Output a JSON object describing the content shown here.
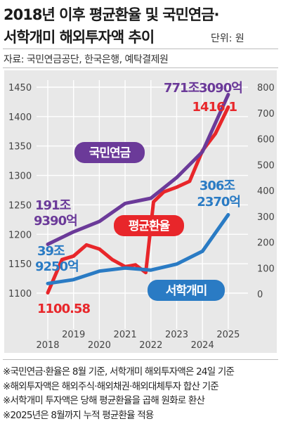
{
  "title_line1": "2018년 이후 평균환율 및 국민연금·",
  "title_line2": "서학개미 해외투자액 추이",
  "unit": "단위: 원",
  "source": "자료: 국민연금공단, 한국은행, 예탁결제원",
  "notes": [
    "※국민연금·환율은 8월 기준, 서학개미 해외투자액은 24일 기준",
    "※해외투자액은 해외주식·해외채권·해외대체투자 합산 기준",
    "※서학개미 투자액은 당해 평균환율을 곱해 원화로 환산",
    "※2025년은 8월까지 누적 평균환율 적용"
  ],
  "colors": {
    "exchange": "#e8262a",
    "pension": "#6b3a99",
    "retail": "#2a7bc4",
    "plot_bg": "#e8e8e8",
    "grid": "#ffffff"
  },
  "chart_data": {
    "type": "line",
    "x": [
      "2018",
      "2019",
      "2020",
      "2021",
      "2022",
      "2023",
      "2024",
      "2025"
    ],
    "y_left": {
      "ticks": [
        "1450",
        "1400",
        "1350",
        "1300",
        "1250",
        "1200",
        "1150",
        "1100"
      ],
      "range": [
        1100,
        1450
      ]
    },
    "y_right": {
      "ticks": [
        "800",
        "700",
        "600",
        "500",
        "400",
        "300",
        "200",
        "100",
        "0"
      ],
      "range": [
        0,
        800
      ]
    },
    "series": [
      {
        "name": "평균환율",
        "axis": "left",
        "color": "#e8262a",
        "x": [
          2018.0,
          2018.55,
          2019.0,
          2019.5,
          2020.0,
          2020.5,
          2021.0,
          2021.4,
          2021.8,
          2022.1,
          2022.5,
          2023.0,
          2023.5,
          2024.0,
          2024.5,
          2025.0
        ],
        "values": [
          1100.58,
          1157,
          1163,
          1182,
          1175,
          1157,
          1145,
          1148,
          1135,
          1255,
          1272,
          1280,
          1290,
          1342,
          1371,
          1416.1
        ]
      },
      {
        "name": "국민연금",
        "axis": "right",
        "color": "#6b3a99",
        "x": [
          2018,
          2019,
          2020,
          2021,
          2022,
          2023,
          2024,
          2025
        ],
        "values": [
          191.939,
          240,
          280,
          350,
          370,
          450,
          550,
          771.309
        ]
      },
      {
        "name": "서학개미",
        "axis": "right",
        "color": "#2a7bc4",
        "x": [
          2018,
          2019,
          2020,
          2021,
          2022,
          2023,
          2024,
          2025
        ],
        "values": [
          39.925,
          55,
          88,
          100,
          92,
          115,
          165,
          306.237
        ]
      }
    ],
    "labels": {
      "exchange_start": "1100.58",
      "exchange_end": "1416.1",
      "pension_start_1": "191조",
      "pension_start_2": "9390억",
      "pension_end": "771조3090억",
      "retail_start_1": "39조",
      "retail_start_2": "9250억",
      "retail_end_1": "306조",
      "retail_end_2": "2370억",
      "exchange_name": "평균환율",
      "pension_name": "국민연금",
      "retail_name": "서학개미"
    }
  }
}
